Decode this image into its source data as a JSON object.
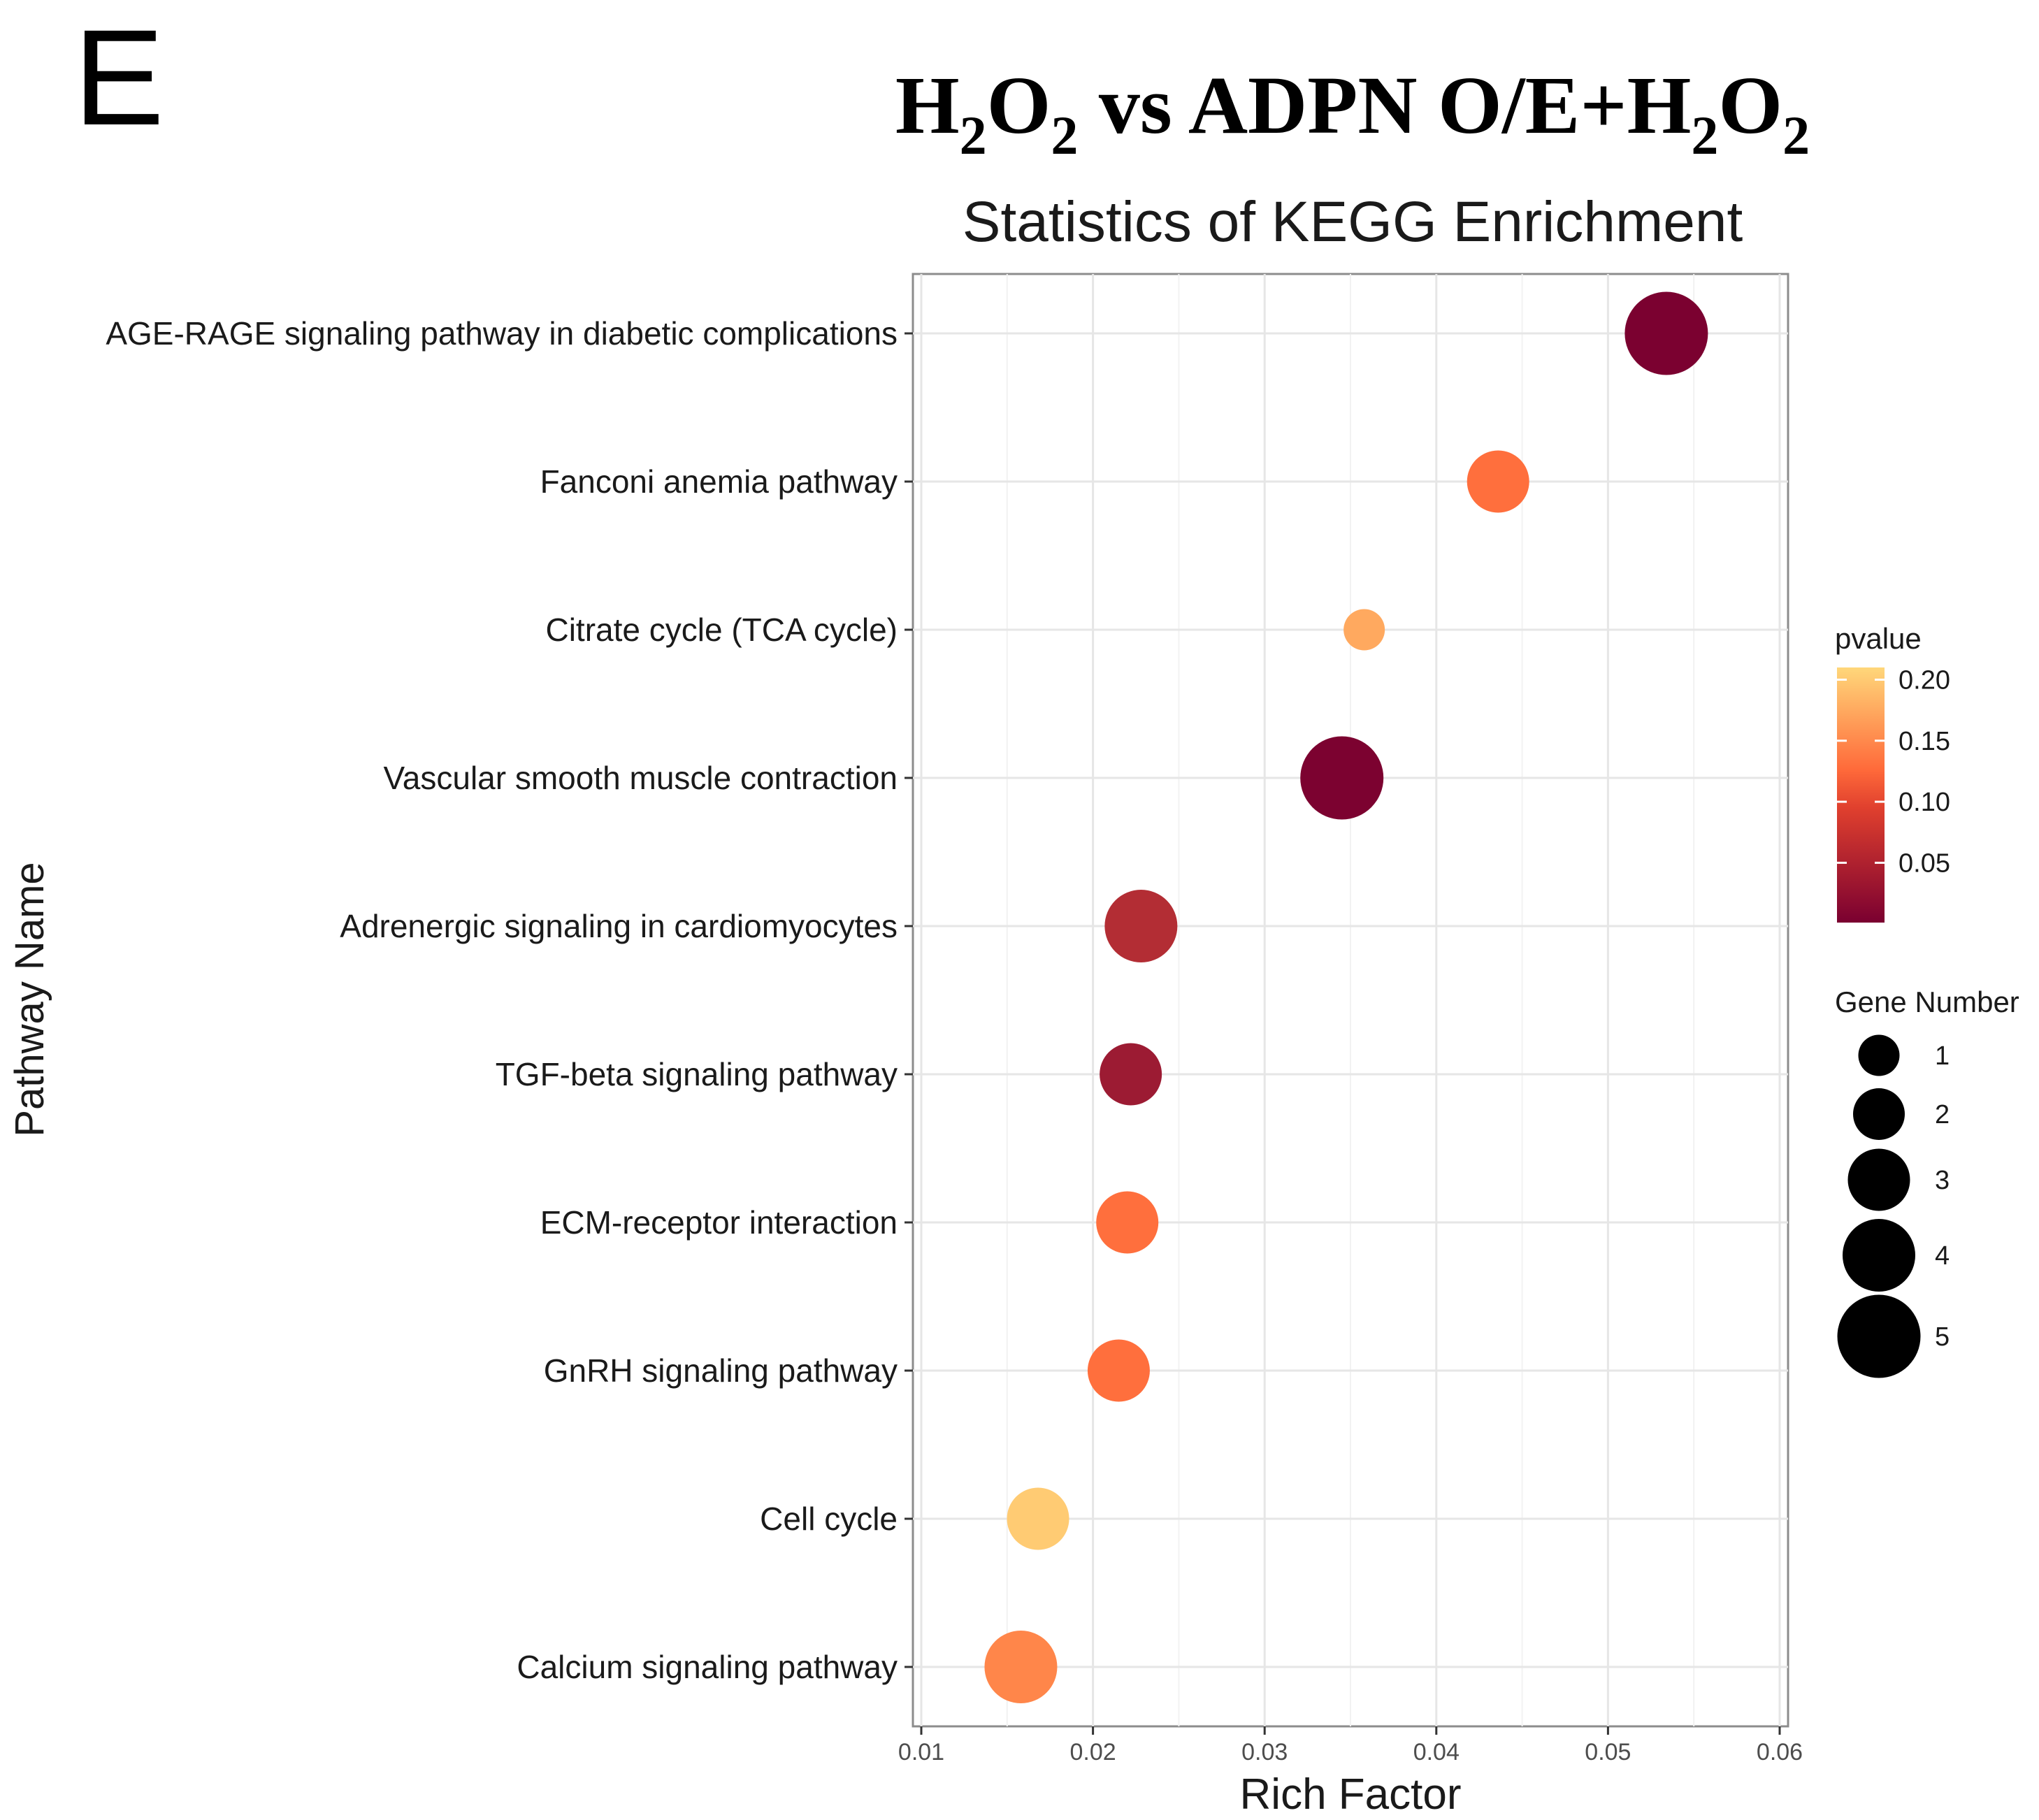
{
  "panel_letter": "E",
  "comparison_title": {
    "parts": [
      {
        "text": "H",
        "sub": false
      },
      {
        "text": "2",
        "sub": true
      },
      {
        "text": "O",
        "sub": false
      },
      {
        "text": "2",
        "sub": true
      },
      {
        "text": " vs ADPN O/E+H",
        "sub": false
      },
      {
        "text": "2",
        "sub": true
      },
      {
        "text": "O",
        "sub": false
      },
      {
        "text": "2",
        "sub": true
      }
    ]
  },
  "chart_data": {
    "type": "scatter",
    "title": "Statistics of KEGG Enrichment",
    "xlabel": "Rich Factor",
    "ylabel": "Pathway Name",
    "xlim": [
      0.01,
      0.06
    ],
    "x_ticks": [
      0.01,
      0.02,
      0.03,
      0.04,
      0.05,
      0.06
    ],
    "x_tick_labels": [
      "0.01",
      "0.02",
      "0.03",
      "0.04",
      "0.05",
      "0.06"
    ],
    "grid": true,
    "points": [
      {
        "pathway": "AGE-RAGE signaling pathway in diabetic complications",
        "rich_factor": 0.0534,
        "pvalue": 0.002,
        "gene_number": 5
      },
      {
        "pathway": "Fanconi anemia pathway",
        "rich_factor": 0.0436,
        "pvalue": 0.12,
        "gene_number": 3
      },
      {
        "pathway": "Citrate cycle (TCA cycle)",
        "rich_factor": 0.0358,
        "pvalue": 0.17,
        "gene_number": 1
      },
      {
        "pathway": "Vascular smooth muscle contraction",
        "rich_factor": 0.0345,
        "pvalue": 0.003,
        "gene_number": 5
      },
      {
        "pathway": "Adrenergic signaling in cardiomyocytes",
        "rich_factor": 0.0228,
        "pvalue": 0.05,
        "gene_number": 4
      },
      {
        "pathway": "TGF-beta signaling pathway",
        "rich_factor": 0.0222,
        "pvalue": 0.03,
        "gene_number": 3
      },
      {
        "pathway": "ECM-receptor interaction",
        "rich_factor": 0.022,
        "pvalue": 0.12,
        "gene_number": 3
      },
      {
        "pathway": "GnRH signaling pathway",
        "rich_factor": 0.0215,
        "pvalue": 0.12,
        "gene_number": 3
      },
      {
        "pathway": "Cell cycle",
        "rich_factor": 0.0168,
        "pvalue": 0.2,
        "gene_number": 3
      },
      {
        "pathway": "Calcium signaling pathway",
        "rich_factor": 0.0158,
        "pvalue": 0.14,
        "gene_number": 4
      }
    ],
    "color_legend": {
      "title": "pvalue",
      "ticks": [
        0.2,
        0.15,
        0.1,
        0.05
      ],
      "tick_labels": [
        "0.20",
        "0.15",
        "0.10",
        "0.05"
      ],
      "range": [
        0.001,
        0.21
      ],
      "low_color": "#7a0030",
      "mid_color": "#ff6a3a",
      "high_color": "#ffd77a"
    },
    "size_legend": {
      "title": "Gene Number",
      "values": [
        1,
        2,
        3,
        4,
        5
      ],
      "labels": [
        "1",
        "2",
        "3",
        "4",
        "5"
      ]
    }
  }
}
